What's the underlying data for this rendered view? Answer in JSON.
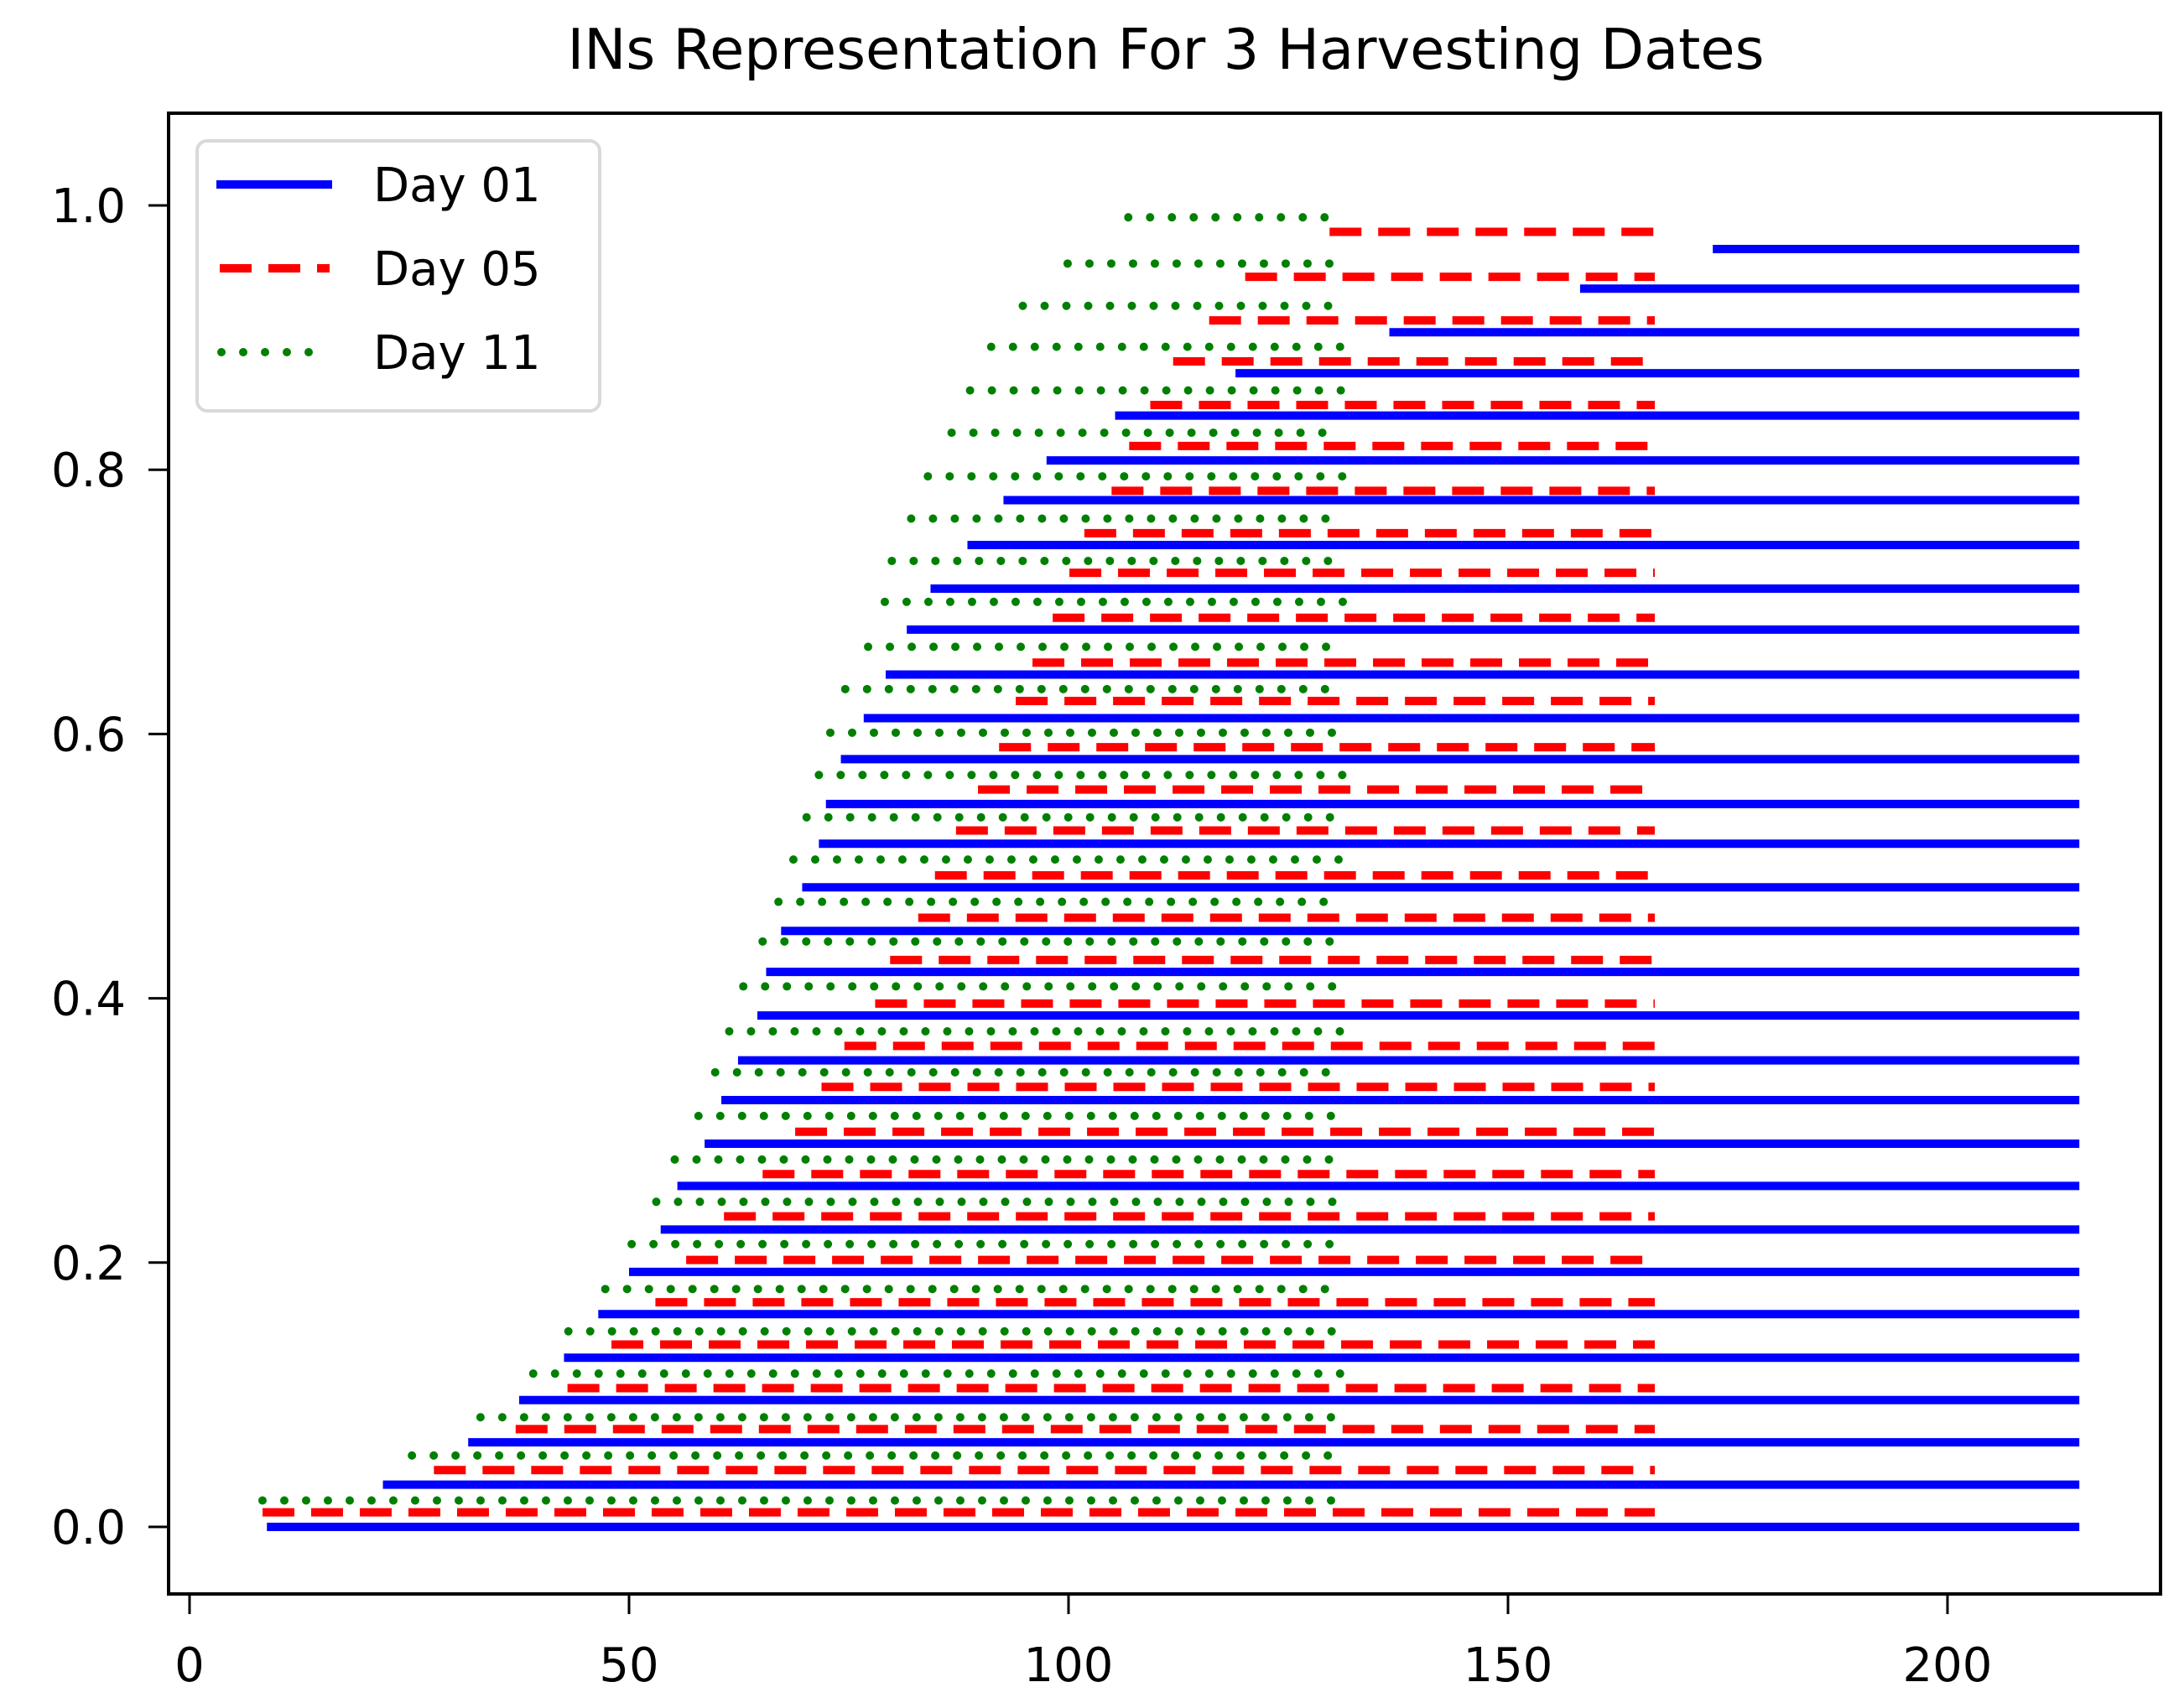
{
  "chart_data": {
    "type": "line",
    "title": "INs Representation For 3 Harvesting Dates",
    "xlabel": "",
    "ylabel": "",
    "xlim": [
      -2,
      225
    ],
    "ylim": [
      -0.05,
      1.07
    ],
    "xticks": [
      0,
      50,
      100,
      150,
      200
    ],
    "xtick_labels": [
      "0",
      "50",
      "100",
      "150",
      "200"
    ],
    "yticks": [
      0.0,
      0.2,
      0.4,
      0.6,
      0.8,
      1.0
    ],
    "ytick_labels": [
      "0.0",
      "0.2",
      "0.4",
      "0.6",
      "0.8",
      "1.0"
    ],
    "grid": false,
    "legend_position": "upper left",
    "series": [
      {
        "name": "Day 01",
        "color": "#0000ff",
        "linestyle": "solid",
        "end": 215,
        "segments": [
          {
            "y": 0.0,
            "start": 8.8
          },
          {
            "y": 0.032,
            "start": 22.0
          },
          {
            "y": 0.064,
            "start": 31.7
          },
          {
            "y": 0.096,
            "start": 37.5
          },
          {
            "y": 0.128,
            "start": 42.6
          },
          {
            "y": 0.161,
            "start": 46.5
          },
          {
            "y": 0.193,
            "start": 50.0
          },
          {
            "y": 0.225,
            "start": 53.6
          },
          {
            "y": 0.258,
            "start": 55.5
          },
          {
            "y": 0.29,
            "start": 58.6
          },
          {
            "y": 0.323,
            "start": 60.5
          },
          {
            "y": 0.353,
            "start": 62.4
          },
          {
            "y": 0.387,
            "start": 64.6
          },
          {
            "y": 0.42,
            "start": 65.6
          },
          {
            "y": 0.451,
            "start": 67.3
          },
          {
            "y": 0.484,
            "start": 69.7
          },
          {
            "y": 0.517,
            "start": 71.6
          },
          {
            "y": 0.547,
            "start": 72.4
          },
          {
            "y": 0.581,
            "start": 74.1
          },
          {
            "y": 0.612,
            "start": 76.7
          },
          {
            "y": 0.645,
            "start": 79.2
          },
          {
            "y": 0.679,
            "start": 81.6
          },
          {
            "y": 0.71,
            "start": 84.3
          },
          {
            "y": 0.743,
            "start": 88.5
          },
          {
            "y": 0.777,
            "start": 92.6
          },
          {
            "y": 0.807,
            "start": 97.5
          },
          {
            "y": 0.841,
            "start": 105.3
          },
          {
            "y": 0.873,
            "start": 119.0
          },
          {
            "y": 0.904,
            "start": 136.5
          },
          {
            "y": 0.937,
            "start": 158.2
          },
          {
            "y": 0.967,
            "start": 173.3
          }
        ]
      },
      {
        "name": "Day 05",
        "color": "#ff0000",
        "linestyle": "dashed",
        "end": 166.7,
        "segments": [
          {
            "y": 0.011,
            "start": 8.3
          },
          {
            "y": 0.043,
            "start": 27.8
          },
          {
            "y": 0.074,
            "start": 37.1
          },
          {
            "y": 0.105,
            "start": 43.0
          },
          {
            "y": 0.138,
            "start": 48.0
          },
          {
            "y": 0.17,
            "start": 53.0
          },
          {
            "y": 0.202,
            "start": 56.5
          },
          {
            "y": 0.235,
            "start": 60.8
          },
          {
            "y": 0.267,
            "start": 65.2
          },
          {
            "y": 0.299,
            "start": 68.9
          },
          {
            "y": 0.333,
            "start": 71.9
          },
          {
            "y": 0.364,
            "start": 74.5
          },
          {
            "y": 0.396,
            "start": 78.0
          },
          {
            "y": 0.429,
            "start": 79.7
          },
          {
            "y": 0.461,
            "start": 82.9
          },
          {
            "y": 0.493,
            "start": 84.8
          },
          {
            "y": 0.527,
            "start": 87.2
          },
          {
            "y": 0.558,
            "start": 89.7
          },
          {
            "y": 0.59,
            "start": 92.1
          },
          {
            "y": 0.625,
            "start": 94.0
          },
          {
            "y": 0.654,
            "start": 95.9
          },
          {
            "y": 0.688,
            "start": 98.2
          },
          {
            "y": 0.722,
            "start": 100.1
          },
          {
            "y": 0.752,
            "start": 101.8
          },
          {
            "y": 0.784,
            "start": 104.9
          },
          {
            "y": 0.818,
            "start": 106.9
          },
          {
            "y": 0.849,
            "start": 109.3
          },
          {
            "y": 0.882,
            "start": 111.9
          },
          {
            "y": 0.913,
            "start": 116.0
          },
          {
            "y": 0.946,
            "start": 120.1
          },
          {
            "y": 0.98,
            "start": 129.7
          }
        ]
      },
      {
        "name": "Day 11",
        "color": "#008000",
        "linestyle": "dotted",
        "end": 131.3,
        "segments": [
          {
            "y": 0.02,
            "start": 8.3
          },
          {
            "y": 0.054,
            "start": 25.3
          },
          {
            "y": 0.083,
            "start": 33.1
          },
          {
            "y": 0.116,
            "start": 39.1
          },
          {
            "y": 0.148,
            "start": 43.1
          },
          {
            "y": 0.18,
            "start": 47.3
          },
          {
            "y": 0.214,
            "start": 50.3
          },
          {
            "y": 0.246,
            "start": 53.1
          },
          {
            "y": 0.278,
            "start": 55.2
          },
          {
            "y": 0.311,
            "start": 57.9
          },
          {
            "y": 0.344,
            "start": 59.8
          },
          {
            "y": 0.375,
            "start": 61.4
          },
          {
            "y": 0.409,
            "start": 63.0
          },
          {
            "y": 0.443,
            "start": 65.2
          },
          {
            "y": 0.473,
            "start": 67.0
          },
          {
            "y": 0.505,
            "start": 68.7
          },
          {
            "y": 0.537,
            "start": 70.2
          },
          {
            "y": 0.569,
            "start": 71.6
          },
          {
            "y": 0.601,
            "start": 72.9
          },
          {
            "y": 0.634,
            "start": 74.6
          },
          {
            "y": 0.666,
            "start": 77.2
          },
          {
            "y": 0.7,
            "start": 79.1
          },
          {
            "y": 0.731,
            "start": 79.9
          },
          {
            "y": 0.763,
            "start": 82.1
          },
          {
            "y": 0.795,
            "start": 84.0
          },
          {
            "y": 0.828,
            "start": 86.7
          },
          {
            "y": 0.86,
            "start": 88.8
          },
          {
            "y": 0.893,
            "start": 91.2
          },
          {
            "y": 0.924,
            "start": 94.8
          },
          {
            "y": 0.956,
            "start": 99.9
          },
          {
            "y": 0.991,
            "start": 106.8
          }
        ]
      }
    ]
  }
}
